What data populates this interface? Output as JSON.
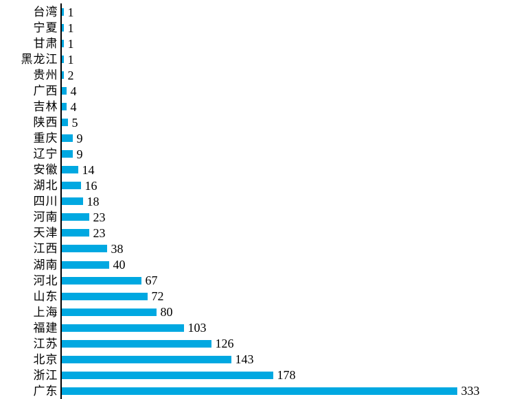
{
  "chart_data": {
    "type": "bar",
    "orientation": "horizontal",
    "title": "",
    "xlabel": "",
    "ylabel": "",
    "categories": [
      "台湾",
      "宁夏",
      "甘肃",
      "黑龙江",
      "贵州",
      "广西",
      "吉林",
      "陕西",
      "重庆",
      "辽宁",
      "安徽",
      "湖北",
      "四川",
      "河南",
      "天津",
      "江西",
      "湖南",
      "河北",
      "山东",
      "上海",
      "福建",
      "江苏",
      "北京",
      "浙江",
      "广东"
    ],
    "values": [
      1,
      1,
      1,
      1,
      2,
      4,
      4,
      5,
      9,
      9,
      14,
      16,
      18,
      23,
      23,
      38,
      40,
      67,
      72,
      80,
      103,
      126,
      143,
      178,
      333
    ],
    "value_labels_shown": true,
    "xlim": [
      0,
      360
    ],
    "grid": false,
    "legend": false,
    "bar_color": "#00A8E1",
    "axis_color": "#000000",
    "text_color": "#000000"
  }
}
